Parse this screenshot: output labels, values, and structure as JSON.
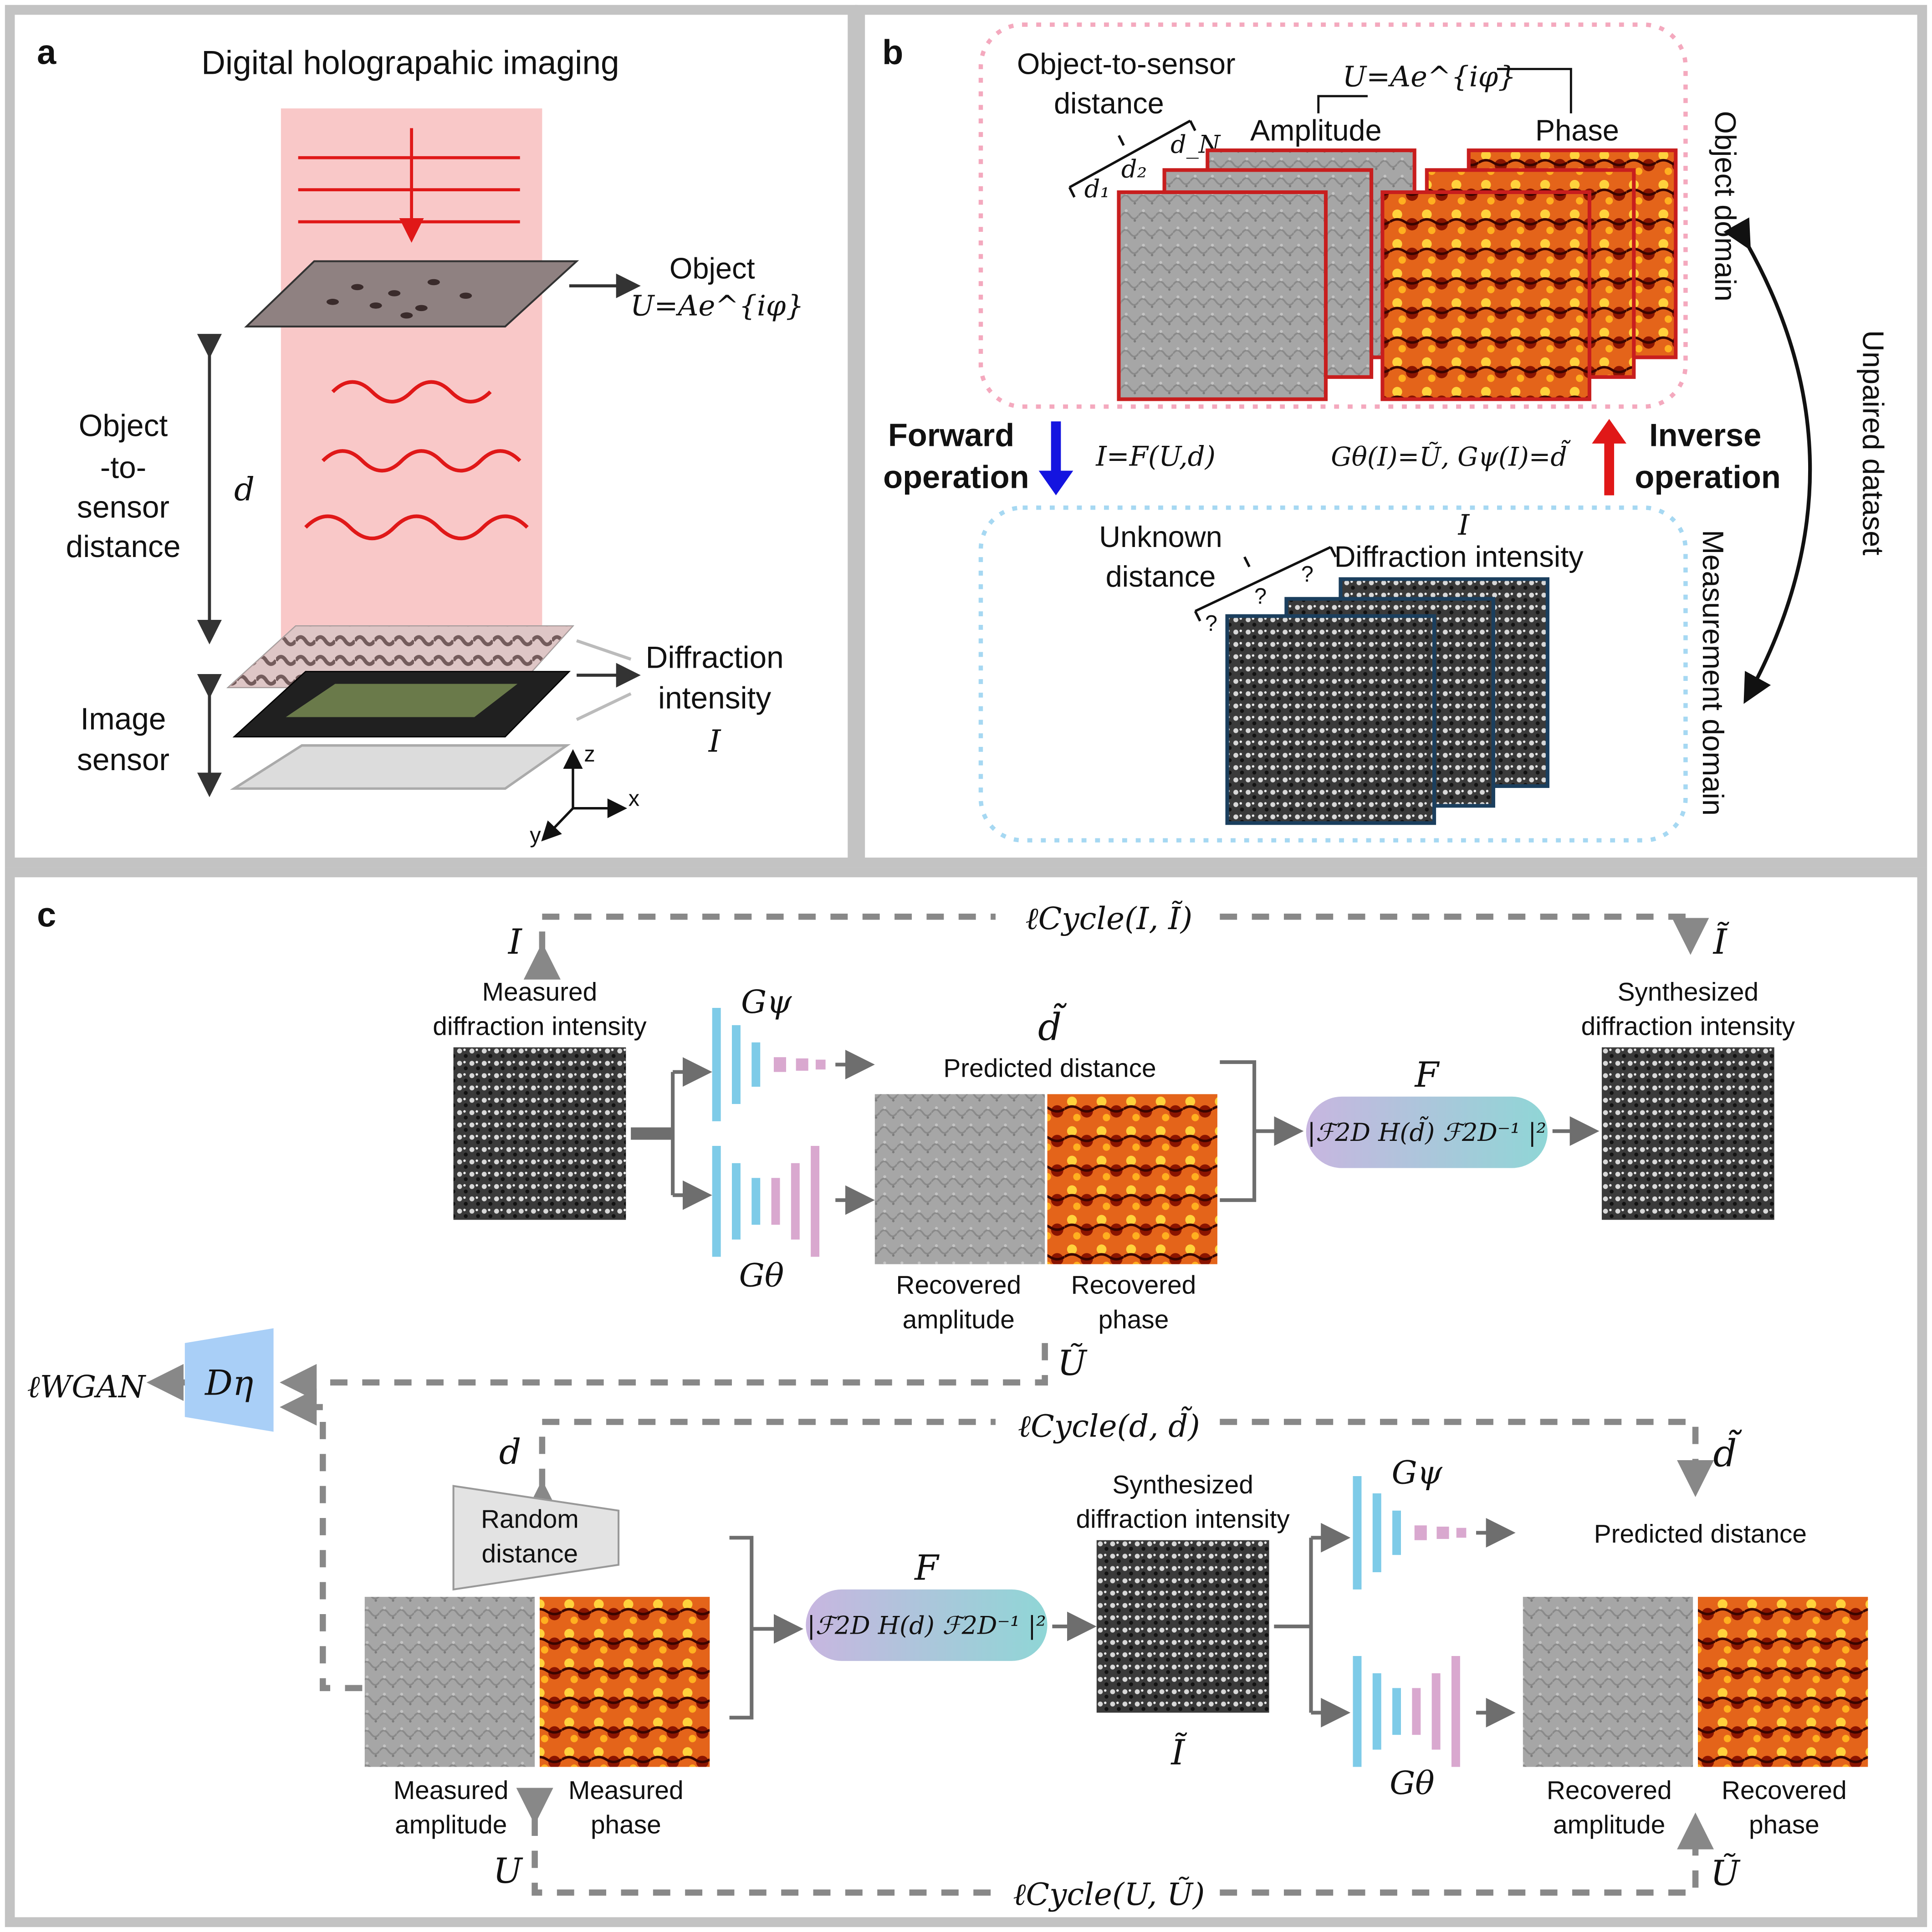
{
  "colors": {
    "red_accent": "#e01818",
    "blue_accent": "#1414e0",
    "beam": "#f9c8c8",
    "object_box": "#f4a9be",
    "measurement_box": "#a6d8f2",
    "encoder_blue": "#7ecbe8",
    "decoder_pink": "#d9a8cf",
    "discriminator": "#a9cff7",
    "operator_grad_left": "#c8b6e0",
    "operator_grad_right": "#8fd6d6",
    "panel_border": "#c3c3c3"
  },
  "icons": [
    "arrow-down-icon",
    "arrow-up-icon",
    "curved-double-arrow-icon",
    "axis-icon",
    "image-sensor-icon"
  ],
  "panel_a": {
    "label": "a",
    "title": "Digital holograpahic imaging",
    "object_label": "Object",
    "object_eq": "U=Ae^{iφ}",
    "distance_l1": "Object",
    "distance_l2": "-to-",
    "distance_l3": "sensor",
    "distance_l4": "distance",
    "distance_symbol": "d",
    "diffraction_l1": "Diffraction",
    "diffraction_l2": "intensity",
    "diffraction_symbol": "I",
    "sensor_l1": "Image",
    "sensor_l2": "sensor",
    "axis_z": "z",
    "axis_x": "x",
    "axis_y": "y"
  },
  "panel_b": {
    "label": "b",
    "ots_l1": "Object-to-sensor",
    "ots_l2": "distance",
    "d1": "d₁",
    "d2": "d₂",
    "dN": "d_N",
    "u_eq": "U=Ae^{iφ}",
    "amplitude": "Amplitude",
    "phase": "Phase",
    "object_domain": "Object domain",
    "measurement_domain": "Measurement domain",
    "unpaired": "Unpaired dataset",
    "forward_l1": "Forward",
    "forward_l2": "operation",
    "forward_eq": "I=F(U,d)",
    "inverse_l1": "Inverse",
    "inverse_l2": "operation",
    "inverse_eq": "Gθ(I)=Ũ, Gψ(I)=d̃",
    "unknown_l1": "Unknown",
    "unknown_l2": "distance",
    "q": "?",
    "i_symbol": "I",
    "diffraction": "Diffraction intensity"
  },
  "panel_c": {
    "label": "c",
    "cycle_top": "ℓCycle(I, Ĩ)",
    "i_symbol": "I",
    "i_tilde": "Ĩ",
    "measured_diff_l1": "Measured",
    "measured_diff_l2": "diffraction intensity",
    "g_psi": "Gψ",
    "g_theta": "Gθ",
    "d_tilde": "d̃",
    "predicted_distance": "Predicted distance",
    "f_symbol": "F",
    "op_top": "|ℱ2D H(d̃) ℱ2D⁻¹ |²",
    "synth_l1": "Synthesized",
    "synth_l2": "diffraction intensity",
    "rec_amp_l1": "Recovered",
    "rec_amp_l2": "amplitude",
    "rec_phase_l1": "Recovered",
    "rec_phase_l2": "phase",
    "u_tilde": "Ũ",
    "wgan": "ℓWGAN",
    "d_eta": "Dη",
    "cycle_mid": "ℓCycle(d, d̃)",
    "d_symbol": "d",
    "random_l1": "Random",
    "random_l2": "distance",
    "synth2_l1": "Synthesized",
    "synth2_l2": "diffraction intensity",
    "op_bottom": "|ℱ2D H(d) ℱ2D⁻¹ |²",
    "meas_amp_l1": "Measured",
    "meas_amp_l2": "amplitude",
    "meas_phase_l1": "Measured",
    "meas_phase_l2": "phase",
    "u_symbol": "U",
    "cycle_bottom": "ℓCycle(U, Ũ)",
    "predicted_distance2": "Predicted distance",
    "rec_amp2_l1": "Recovered",
    "rec_amp2_l2": "amplitude",
    "rec_phase2_l1": "Recovered",
    "rec_phase2_l2": "phase"
  }
}
